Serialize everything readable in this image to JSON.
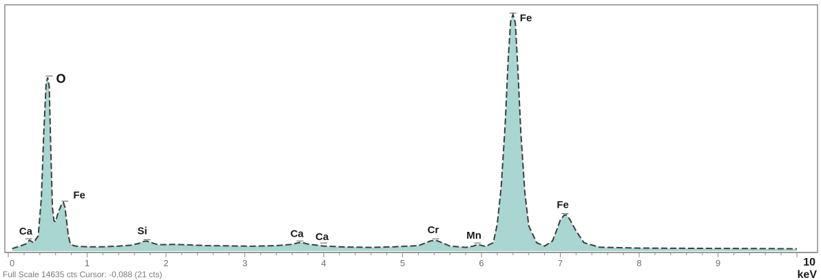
{
  "chart_data": {
    "type": "line",
    "title": "",
    "xlabel": "keV",
    "ylabel": "",
    "xlim": [
      0,
      10
    ],
    "ylim": [
      0,
      14635
    ],
    "grid": false,
    "x_ticks": [
      "0",
      "1",
      "2",
      "3",
      "4",
      "5",
      "6",
      "7",
      "8",
      "9"
    ],
    "x_end_label": "10",
    "x_unit_label": "keV",
    "status_text": "Full Scale 14635 cts Cursor: -0.088  (21 cts)",
    "series": [
      {
        "x": [
          0.05,
          0.15,
          0.22,
          0.27,
          0.32,
          0.38,
          0.42,
          0.45,
          0.48,
          0.5,
          0.52,
          0.54,
          0.56,
          0.58,
          0.6,
          0.62,
          0.64,
          0.66,
          0.68,
          0.7,
          0.72,
          0.74,
          0.76,
          0.78,
          0.8,
          0.85,
          0.9,
          1.0,
          1.2,
          1.4,
          1.55,
          1.65,
          1.72,
          1.76,
          1.8,
          1.9,
          2.1,
          2.3,
          2.5,
          2.8,
          3.1,
          3.4,
          3.6,
          3.68,
          3.72,
          3.8,
          4.0,
          4.3,
          4.6,
          4.9,
          5.2,
          5.3,
          5.35,
          5.42,
          5.5,
          5.6,
          5.8,
          5.9,
          5.95,
          6.05,
          6.15,
          6.2,
          6.25,
          6.3,
          6.34,
          6.37,
          6.4,
          6.43,
          6.46,
          6.5,
          6.55,
          6.6,
          6.7,
          6.8,
          6.9,
          6.95,
          7.0,
          7.05,
          7.08,
          7.12,
          7.2,
          7.3,
          7.5,
          8.0,
          8.5,
          9.0,
          9.5,
          10.0
        ],
        "y": [
          150,
          300,
          420,
          650,
          500,
          900,
          3200,
          7000,
          10000,
          10350,
          9800,
          6000,
          2600,
          1800,
          1750,
          2100,
          2400,
          2600,
          2850,
          2900,
          2600,
          1800,
          1000,
          550,
          380,
          300,
          280,
          260,
          260,
          300,
          350,
          450,
          580,
          600,
          520,
          380,
          400,
          370,
          330,
          310,
          290,
          330,
          400,
          500,
          520,
          420,
          300,
          240,
          220,
          260,
          330,
          500,
          600,
          650,
          500,
          300,
          220,
          300,
          400,
          280,
          500,
          1600,
          3800,
          7500,
          11500,
          13700,
          14100,
          13600,
          11000,
          7000,
          3500,
          1500,
          500,
          300,
          600,
          1200,
          1850,
          2150,
          2150,
          1900,
          1200,
          500,
          230,
          180,
          170,
          160,
          150,
          140
        ]
      }
    ],
    "peak_labels": [
      {
        "text": "Ca",
        "x": 0.26,
        "y": 650
      },
      {
        "text": "O",
        "x": 0.52,
        "y": 10350
      },
      {
        "text": "Fe",
        "x": 0.72,
        "y": 2900
      },
      {
        "text": "Si",
        "x": 1.76,
        "y": 600
      },
      {
        "text": "Ca",
        "x": 3.7,
        "y": 520
      },
      {
        "text": "Ca",
        "x": 4.0,
        "y": 400
      },
      {
        "text": "Cr",
        "x": 5.42,
        "y": 650
      },
      {
        "text": "Mn",
        "x": 5.95,
        "y": 400
      },
      {
        "text": "Fe",
        "x": 6.4,
        "y": 14100
      },
      {
        "text": "Fe",
        "x": 7.06,
        "y": 2150
      }
    ],
    "colors": {
      "fill": "#a9d6d0",
      "line": "#3c3c3c",
      "frame": "#8a8a8a"
    }
  }
}
